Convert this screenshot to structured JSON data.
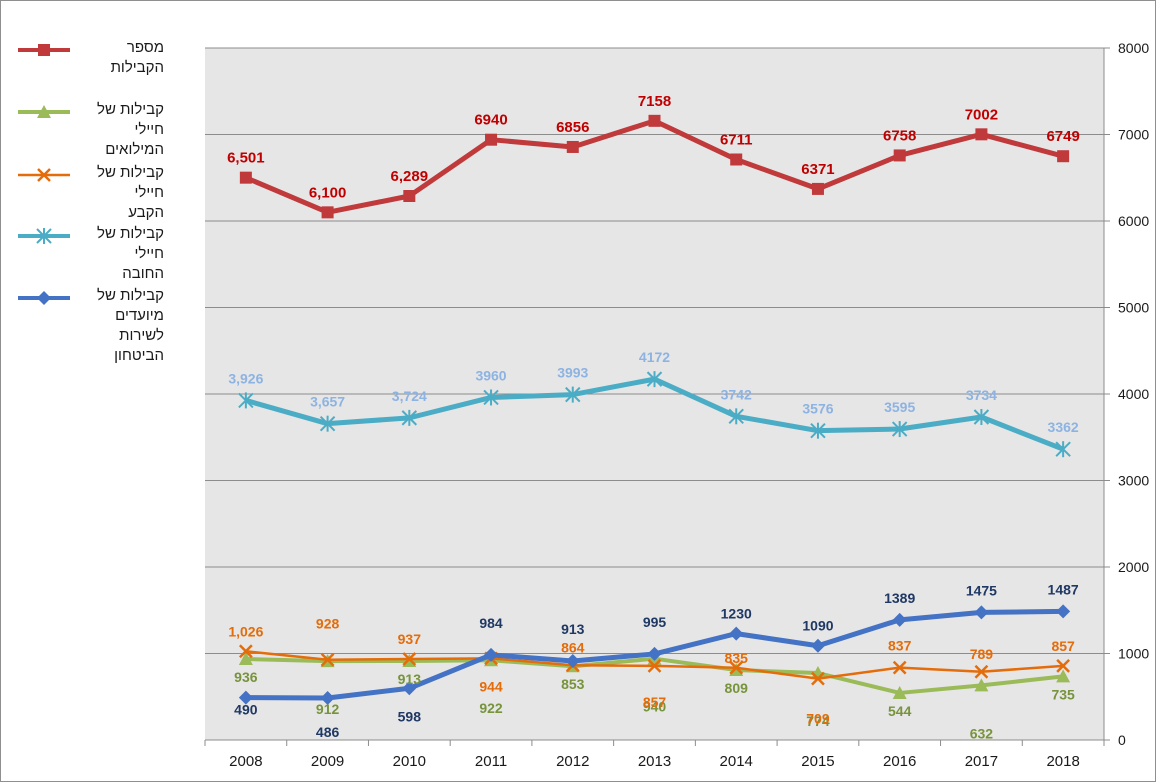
{
  "chart_data": {
    "type": "line",
    "categories": [
      "2008",
      "2009",
      "2010",
      "2011",
      "2012",
      "2013",
      "2014",
      "2015",
      "2016",
      "2017",
      "2018"
    ],
    "ylim": [
      0,
      8000
    ],
    "yticks": [
      "0",
      "1000",
      "2000",
      "3000",
      "4000",
      "5000",
      "6000",
      "7000",
      "8000"
    ],
    "ytick_values": [
      0,
      1000,
      2000,
      3000,
      4000,
      5000,
      6000,
      7000,
      8000
    ],
    "y_axis_side": "right",
    "grid": true,
    "legend_position": "left",
    "plot_background": "#e6e6e6",
    "series": [
      {
        "name": "מספר הקבילות",
        "color": "#c0393b",
        "label_color": "#c00000",
        "marker": "square",
        "values": [
          6501,
          6100,
          6289,
          6940,
          6856,
          7158,
          6711,
          6371,
          6758,
          7002,
          6749
        ],
        "labels": [
          "6,501",
          "6,100",
          "6,289",
          "6940",
          "6856",
          "7158",
          "6711",
          "6371",
          "6758",
          "7002",
          "6749"
        ]
      },
      {
        "name": "קבילות של חיילי החובה",
        "color": "#4bacc6",
        "label_color": "#8db3e2",
        "marker": "asterisk",
        "values": [
          3926,
          3657,
          3724,
          3960,
          3993,
          4172,
          3742,
          3576,
          3595,
          3734,
          3362
        ],
        "labels": [
          "3,926",
          "3,657",
          "3,724",
          "3960",
          "3993",
          "4172",
          "3742",
          "3576",
          "3595",
          "3734",
          "3362"
        ]
      },
      {
        "name": "קבילות של חיילי המילואים",
        "color": "#9bbb59",
        "label_color": "#77933c",
        "marker": "triangle",
        "values": [
          936,
          912,
          913,
          922,
          853,
          940,
          809,
          774,
          544,
          632,
          735
        ],
        "labels": [
          "936",
          "912",
          "913",
          "922",
          "853",
          "940",
          "809",
          "774",
          "544",
          "632",
          "735"
        ]
      },
      {
        "name": "קבילות של חיילי הקבע",
        "color": "#e46c0a",
        "label_color": "#e46c0a",
        "marker": "x",
        "values": [
          1026,
          928,
          937,
          944,
          864,
          857,
          835,
          709,
          837,
          789,
          857
        ],
        "labels": [
          "1,026",
          "928",
          "937",
          "944",
          "864",
          "857",
          "835",
          "709",
          "837",
          "789",
          "857"
        ]
      },
      {
        "name": "קבילות של מיועדים לשירות הביטחון",
        "color": "#4472c4",
        "label_color": "#1f3864",
        "marker": "diamond",
        "values": [
          490,
          486,
          598,
          984,
          913,
          995,
          1230,
          1090,
          1389,
          1475,
          1487
        ],
        "labels": [
          "490",
          "486",
          "598",
          "984",
          "913",
          "995",
          "1230",
          "1090",
          "1389",
          "1475",
          "1487"
        ]
      }
    ]
  },
  "legend": [
    {
      "line1": "מספר הקבילות",
      "line2": "",
      "line3": ""
    },
    {
      "line1": "קבילות של חיילי",
      "line2": "המילואים",
      "line3": ""
    },
    {
      "line1": "קבילות של חיילי",
      "line2": "הקבע",
      "line3": ""
    },
    {
      "line1": "קבילות של חיילי",
      "line2": "החובה",
      "line3": ""
    },
    {
      "line1": "קבילות של",
      "line2": "מיועדים לשירות",
      "line3": "הביטחון"
    }
  ]
}
